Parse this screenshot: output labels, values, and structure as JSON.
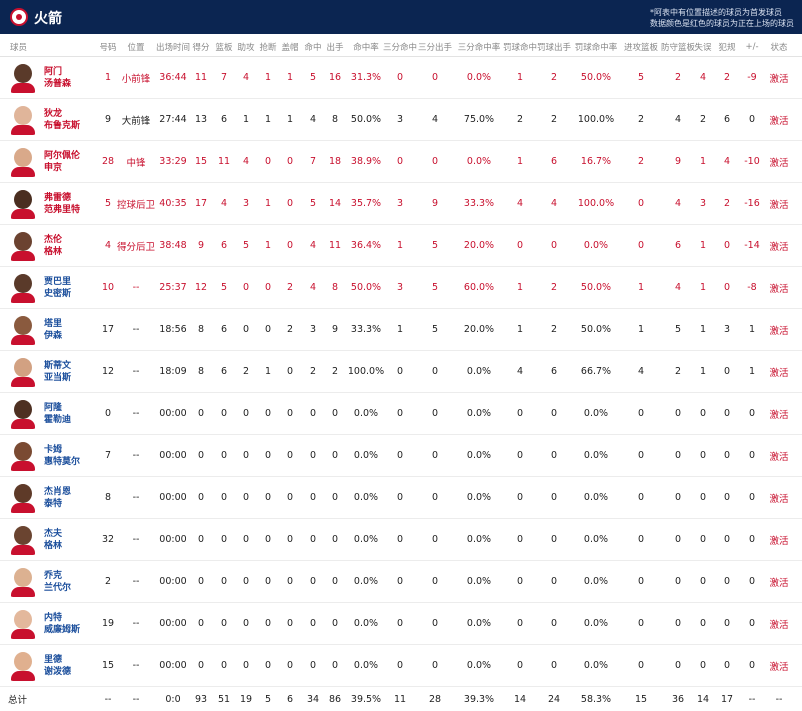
{
  "header": {
    "team_name": "火箭",
    "note_line1": "*阿表中有位置描述的球员为首发球员",
    "note_line2": "数据颜色是红色的球员为正在上场的球员"
  },
  "columns": {
    "player": "球员",
    "number": "号码",
    "position": "位置",
    "minutes": "出场时间",
    "points": "得分",
    "rebounds": "篮板",
    "assists": "助攻",
    "steals": "抢断",
    "blocks": "盖帽",
    "fgm": "命中",
    "fga": "出手",
    "fgp": "命中率",
    "tpm": "三分命中",
    "tpa": "三分出手",
    "tpp": "三分命中率",
    "ftm": "罚球命中",
    "fta": "罚球出手",
    "ftp": "罚球命中率",
    "oreb": "进攻篮板",
    "dreb": "防守篮板",
    "tov": "失误",
    "pf": "犯规",
    "pm": "+/-",
    "status": "状态"
  },
  "players": [
    {
      "first": "阿门",
      "last": "汤普森",
      "number": "1",
      "position": "小前锋",
      "minutes": "36:44",
      "points": "11",
      "rebounds": "7",
      "assists": "4",
      "steals": "1",
      "blocks": "1",
      "fgm": "5",
      "fga": "16",
      "fgp": "31.3%",
      "tpm": "0",
      "tpa": "0",
      "tpp": "0.0%",
      "ftm": "1",
      "fta": "2",
      "ftp": "50.0%",
      "oreb": "5",
      "dreb": "2",
      "tov": "4",
      "pf": "2",
      "pm": "-9",
      "status": "激活",
      "on_court": true
    },
    {
      "first": "狄龙",
      "last": "布鲁克斯",
      "number": "9",
      "position": "大前锋",
      "minutes": "27:44",
      "points": "13",
      "rebounds": "6",
      "assists": "1",
      "steals": "1",
      "blocks": "1",
      "fgm": "4",
      "fga": "8",
      "fgp": "50.0%",
      "tpm": "3",
      "tpa": "4",
      "tpp": "75.0%",
      "ftm": "2",
      "fta": "2",
      "ftp": "100.0%",
      "oreb": "2",
      "dreb": "4",
      "tov": "2",
      "pf": "6",
      "pm": "0",
      "status": "激活",
      "on_court": false
    },
    {
      "first": "阿尔佩伦",
      "last": "申京",
      "number": "28",
      "position": "中锋",
      "minutes": "33:29",
      "points": "15",
      "rebounds": "11",
      "assists": "4",
      "steals": "0",
      "blocks": "0",
      "fgm": "7",
      "fga": "18",
      "fgp": "38.9%",
      "tpm": "0",
      "tpa": "0",
      "tpp": "0.0%",
      "ftm": "1",
      "fta": "6",
      "ftp": "16.7%",
      "oreb": "2",
      "dreb": "9",
      "tov": "1",
      "pf": "4",
      "pm": "-10",
      "status": "激活",
      "on_court": true
    },
    {
      "first": "弗雷德",
      "last": "范弗里特",
      "number": "5",
      "position": "控球后卫",
      "minutes": "40:35",
      "points": "17",
      "rebounds": "4",
      "assists": "3",
      "steals": "1",
      "blocks": "0",
      "fgm": "5",
      "fga": "14",
      "fgp": "35.7%",
      "tpm": "3",
      "tpa": "9",
      "tpp": "33.3%",
      "ftm": "4",
      "fta": "4",
      "ftp": "100.0%",
      "oreb": "0",
      "dreb": "4",
      "tov": "3",
      "pf": "2",
      "pm": "-16",
      "status": "激活",
      "on_court": true
    },
    {
      "first": "杰伦",
      "last": "格林",
      "number": "4",
      "position": "得分后卫",
      "minutes": "38:48",
      "points": "9",
      "rebounds": "6",
      "assists": "5",
      "steals": "1",
      "blocks": "0",
      "fgm": "4",
      "fga": "11",
      "fgp": "36.4%",
      "tpm": "1",
      "tpa": "5",
      "tpp": "20.0%",
      "ftm": "0",
      "fta": "0",
      "ftp": "0.0%",
      "oreb": "0",
      "dreb": "6",
      "tov": "1",
      "pf": "0",
      "pm": "-14",
      "status": "激活",
      "on_court": true
    },
    {
      "first": "贾巴里",
      "last": "史密斯",
      "number": "10",
      "position": "--",
      "minutes": "25:37",
      "points": "12",
      "rebounds": "5",
      "assists": "0",
      "steals": "0",
      "blocks": "2",
      "fgm": "4",
      "fga": "8",
      "fgp": "50.0%",
      "tpm": "3",
      "tpa": "5",
      "tpp": "60.0%",
      "ftm": "1",
      "fta": "2",
      "ftp": "50.0%",
      "oreb": "1",
      "dreb": "4",
      "tov": "1",
      "pf": "0",
      "pm": "-8",
      "status": "激活",
      "on_court": true
    },
    {
      "first": "塔里",
      "last": "伊森",
      "number": "17",
      "position": "--",
      "minutes": "18:56",
      "points": "8",
      "rebounds": "6",
      "assists": "0",
      "steals": "0",
      "blocks": "2",
      "fgm": "3",
      "fga": "9",
      "fgp": "33.3%",
      "tpm": "1",
      "tpa": "5",
      "tpp": "20.0%",
      "ftm": "1",
      "fta": "2",
      "ftp": "50.0%",
      "oreb": "1",
      "dreb": "5",
      "tov": "1",
      "pf": "3",
      "pm": "1",
      "status": "激活",
      "on_court": false
    },
    {
      "first": "斯蒂文",
      "last": "亚当斯",
      "number": "12",
      "position": "--",
      "minutes": "18:09",
      "points": "8",
      "rebounds": "6",
      "assists": "2",
      "steals": "1",
      "blocks": "0",
      "fgm": "2",
      "fga": "2",
      "fgp": "100.0%",
      "tpm": "0",
      "tpa": "0",
      "tpp": "0.0%",
      "ftm": "4",
      "fta": "6",
      "ftp": "66.7%",
      "oreb": "4",
      "dreb": "2",
      "tov": "1",
      "pf": "0",
      "pm": "1",
      "status": "激活",
      "on_court": false
    },
    {
      "first": "阿隆",
      "last": "霍勒迪",
      "number": "0",
      "position": "--",
      "minutes": "00:00",
      "points": "0",
      "rebounds": "0",
      "assists": "0",
      "steals": "0",
      "blocks": "0",
      "fgm": "0",
      "fga": "0",
      "fgp": "0.0%",
      "tpm": "0",
      "tpa": "0",
      "tpp": "0.0%",
      "ftm": "0",
      "fta": "0",
      "ftp": "0.0%",
      "oreb": "0",
      "dreb": "0",
      "tov": "0",
      "pf": "0",
      "pm": "0",
      "status": "激活",
      "on_court": false
    },
    {
      "first": "卡姆",
      "last": "惠特莫尔",
      "number": "7",
      "position": "--",
      "minutes": "00:00",
      "points": "0",
      "rebounds": "0",
      "assists": "0",
      "steals": "0",
      "blocks": "0",
      "fgm": "0",
      "fga": "0",
      "fgp": "0.0%",
      "tpm": "0",
      "tpa": "0",
      "tpp": "0.0%",
      "ftm": "0",
      "fta": "0",
      "ftp": "0.0%",
      "oreb": "0",
      "dreb": "0",
      "tov": "0",
      "pf": "0",
      "pm": "0",
      "status": "激活",
      "on_court": false
    },
    {
      "first": "杰肖恩",
      "last": "泰特",
      "number": "8",
      "position": "--",
      "minutes": "00:00",
      "points": "0",
      "rebounds": "0",
      "assists": "0",
      "steals": "0",
      "blocks": "0",
      "fgm": "0",
      "fga": "0",
      "fgp": "0.0%",
      "tpm": "0",
      "tpa": "0",
      "tpp": "0.0%",
      "ftm": "0",
      "fta": "0",
      "ftp": "0.0%",
      "oreb": "0",
      "dreb": "0",
      "tov": "0",
      "pf": "0",
      "pm": "0",
      "status": "激活",
      "on_court": false
    },
    {
      "first": "杰夫",
      "last": "格林",
      "number": "32",
      "position": "--",
      "minutes": "00:00",
      "points": "0",
      "rebounds": "0",
      "assists": "0",
      "steals": "0",
      "blocks": "0",
      "fgm": "0",
      "fga": "0",
      "fgp": "0.0%",
      "tpm": "0",
      "tpa": "0",
      "tpp": "0.0%",
      "ftm": "0",
      "fta": "0",
      "ftp": "0.0%",
      "oreb": "0",
      "dreb": "0",
      "tov": "0",
      "pf": "0",
      "pm": "0",
      "status": "激活",
      "on_court": false
    },
    {
      "first": "乔克",
      "last": "兰代尔",
      "number": "2",
      "position": "--",
      "minutes": "00:00",
      "points": "0",
      "rebounds": "0",
      "assists": "0",
      "steals": "0",
      "blocks": "0",
      "fgm": "0",
      "fga": "0",
      "fgp": "0.0%",
      "tpm": "0",
      "tpa": "0",
      "tpp": "0.0%",
      "ftm": "0",
      "fta": "0",
      "ftp": "0.0%",
      "oreb": "0",
      "dreb": "0",
      "tov": "0",
      "pf": "0",
      "pm": "0",
      "status": "激活",
      "on_court": false
    },
    {
      "first": "内特",
      "last": "威廉姆斯",
      "number": "19",
      "position": "--",
      "minutes": "00:00",
      "points": "0",
      "rebounds": "0",
      "assists": "0",
      "steals": "0",
      "blocks": "0",
      "fgm": "0",
      "fga": "0",
      "fgp": "0.0%",
      "tpm": "0",
      "tpa": "0",
      "tpp": "0.0%",
      "ftm": "0",
      "fta": "0",
      "ftp": "0.0%",
      "oreb": "0",
      "dreb": "0",
      "tov": "0",
      "pf": "0",
      "pm": "0",
      "status": "激活",
      "on_court": false
    },
    {
      "first": "里德",
      "last": "谢泼德",
      "number": "15",
      "position": "--",
      "minutes": "00:00",
      "points": "0",
      "rebounds": "0",
      "assists": "0",
      "steals": "0",
      "blocks": "0",
      "fgm": "0",
      "fga": "0",
      "fgp": "0.0%",
      "tpm": "0",
      "tpa": "0",
      "tpp": "0.0%",
      "ftm": "0",
      "fta": "0",
      "ftp": "0.0%",
      "oreb": "0",
      "dreb": "0",
      "tov": "0",
      "pf": "0",
      "pm": "0",
      "status": "激活",
      "on_court": false
    }
  ],
  "totals": {
    "label": "总计",
    "number": "--",
    "position": "--",
    "minutes": "0:0",
    "points": "93",
    "rebounds": "51",
    "assists": "19",
    "steals": "5",
    "blocks": "6",
    "fgm": "34",
    "fga": "86",
    "fgp": "39.5%",
    "tpm": "11",
    "tpa": "28",
    "tpp": "39.3%",
    "ftm": "14",
    "fta": "24",
    "ftp": "58.3%",
    "oreb": "15",
    "dreb": "36",
    "tov": "14",
    "pf": "17",
    "pm": "--",
    "status": "--"
  },
  "colors": {
    "header_bg": "#0b2551",
    "active_red": "#c8102e",
    "bench_blue": "#1c4f9c"
  }
}
